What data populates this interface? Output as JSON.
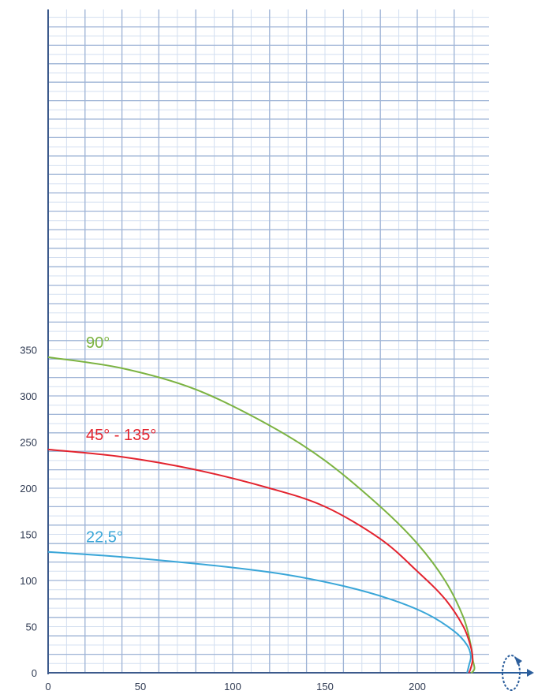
{
  "chart_data": {
    "type": "line",
    "title": "",
    "xlabel": "",
    "ylabel": "",
    "xlim": [
      0,
      230
    ],
    "ylim": [
      0,
      350
    ],
    "x_ticks": [
      "0",
      "50",
      "100",
      "150",
      "200"
    ],
    "y_ticks": [
      "0",
      "50",
      "100",
      "150",
      "200",
      "250",
      "300",
      "350"
    ],
    "grid": true,
    "legend": "none (series labelled inline)",
    "rotation_icon": "rotation-axis-icon",
    "series": [
      {
        "name": "90°",
        "color": "#7cb342",
        "x": [
          0,
          40,
          80,
          120,
          150,
          180,
          200,
          215,
          225,
          229,
          230,
          231,
          230,
          229
        ],
        "y": [
          342,
          330,
          307,
          268,
          230,
          180,
          140,
          100,
          60,
          30,
          15,
          5,
          1,
          0
        ]
      },
      {
        "name": "45° - 135°",
        "color": "#e3232e",
        "x": [
          0,
          40,
          80,
          120,
          150,
          180,
          200,
          215,
          225,
          229,
          230,
          229,
          228
        ],
        "y": [
          242,
          234,
          220,
          200,
          180,
          145,
          110,
          80,
          50,
          28,
          15,
          5,
          0
        ]
      },
      {
        "name": "22,5°",
        "color": "#3aa6d8",
        "x": [
          0,
          30,
          60,
          100,
          130,
          160,
          185,
          205,
          220,
          227,
          229,
          228,
          227
        ],
        "y": [
          131,
          127,
          122,
          114,
          106,
          94,
          80,
          64,
          45,
          30,
          18,
          8,
          0
        ]
      }
    ]
  }
}
